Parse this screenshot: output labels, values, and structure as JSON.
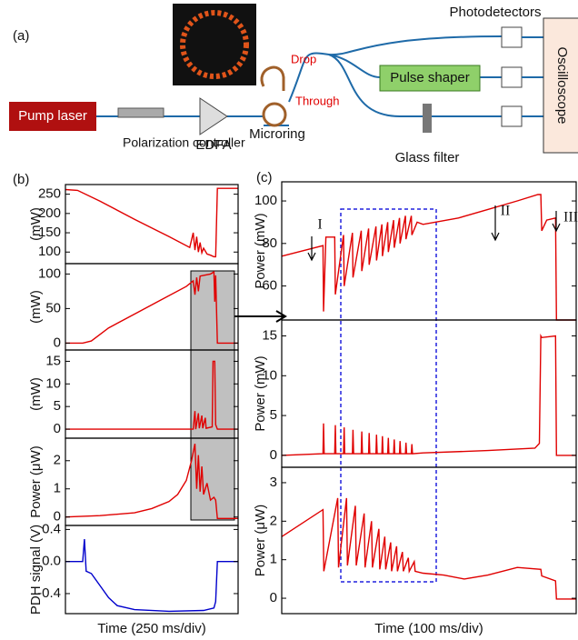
{
  "diagram": {
    "label": "(a)",
    "pump_laser": "Pump laser",
    "polarization_controller": "Polarization controller",
    "edfa": "EDFA",
    "microring": "Microring",
    "drop": "Drop",
    "through": "Through",
    "pulse_shaper": "Pulse shaper",
    "photodetectors": "Photodetectors",
    "oscilloscope": "Oscilloscope",
    "glass_filter": "Glass filter"
  },
  "chart_data": [
    {
      "type": "line",
      "panel_label": "(b)",
      "ylabel": "(mW)",
      "xlim": [
        0,
        100
      ],
      "ylim": [
        70,
        275
      ],
      "yticks": [
        100,
        150,
        200,
        250
      ],
      "x": [
        0,
        7,
        20,
        40,
        60,
        72,
        74,
        75,
        76,
        77,
        78,
        79,
        80,
        82,
        84,
        86,
        87,
        88,
        100
      ],
      "series": [
        {
          "color": "#e00000",
          "values": [
            262,
            260,
            232,
            185,
            140,
            112,
            150,
            105,
            140,
            100,
            125,
            98,
            110,
            95,
            92,
            88,
            88,
            265,
            265
          ]
        }
      ]
    },
    {
      "type": "line",
      "ylabel": "(mW)",
      "xlim": [
        0,
        100
      ],
      "ylim": [
        -10,
        115
      ],
      "yticks": [
        0,
        50,
        100
      ],
      "x": [
        0,
        10,
        15,
        25,
        40,
        55,
        70,
        74,
        75,
        76,
        77,
        78,
        80,
        84,
        86,
        86.5,
        87,
        88,
        100
      ],
      "series": [
        {
          "color": "#e00000",
          "values": [
            0,
            0,
            3,
            22,
            42,
            62,
            82,
            90,
            70,
            95,
            75,
            97,
            98,
            100,
            103,
            60,
            98,
            0,
            0
          ]
        }
      ]
    },
    {
      "type": "line",
      "ylabel": "(mW)",
      "xlim": [
        0,
        100
      ],
      "ylim": [
        -2,
        17.5
      ],
      "yticks": [
        0,
        5,
        10,
        15
      ],
      "x": [
        0,
        74,
        75,
        75.5,
        77,
        77.5,
        79,
        79.5,
        81,
        81.5,
        85,
        85.5,
        86.5,
        87,
        88,
        100
      ],
      "series": [
        {
          "color": "#e00000",
          "values": [
            0,
            0,
            4,
            0,
            3.5,
            0.2,
            3,
            0.2,
            2.5,
            0.2,
            0.5,
            15,
            15,
            1,
            0,
            0
          ]
        }
      ]
    },
    {
      "type": "line",
      "ylabel": "Power (μW)",
      "xlim": [
        0,
        100
      ],
      "ylim": [
        -0.3,
        2.8
      ],
      "yticks": [
        0,
        1,
        2
      ],
      "x": [
        0,
        20,
        40,
        50,
        60,
        65,
        70,
        73,
        75,
        76,
        77,
        78,
        79,
        80,
        82,
        84,
        86,
        87,
        88,
        100
      ],
      "series": [
        {
          "color": "#e00000",
          "values": [
            0,
            0.05,
            0.15,
            0.3,
            0.55,
            0.8,
            1.3,
            2,
            2.6,
            1,
            2.2,
            0.9,
            1.8,
            0.8,
            1.2,
            0.6,
            0.7,
            0.6,
            -0.05,
            -0.05
          ]
        }
      ]
    },
    {
      "type": "line",
      "ylabel": "PDH signal (V)",
      "xlabel": "Time (250 ms/div)",
      "xlim": [
        0,
        100
      ],
      "ylim": [
        -0.65,
        0.45
      ],
      "yticks": [
        0.4,
        {
          "value": 0,
          "label": "0.0"
        },
        -0.4
      ],
      "x": [
        0,
        10,
        11,
        12,
        15,
        20,
        25,
        30,
        40,
        60,
        80,
        86,
        87,
        88,
        100
      ],
      "series": [
        {
          "color": "#0000cc",
          "values": [
            0,
            0,
            0.28,
            -0.12,
            -0.15,
            -0.3,
            -0.45,
            -0.55,
            -0.6,
            -0.62,
            -0.61,
            -0.58,
            -0.5,
            0,
            0
          ]
        }
      ]
    },
    {
      "type": "line",
      "panel_label": "(c)",
      "ylabel": "Power (mW)",
      "annotations": [
        "I",
        "II",
        "III"
      ],
      "xlim": [
        0,
        100
      ],
      "ylim": [
        44,
        109
      ],
      "yticks": [
        60,
        80,
        100
      ],
      "x": [
        0,
        14,
        14.2,
        15,
        18,
        18.2,
        21,
        21.2,
        24,
        24.2,
        27,
        27.2,
        29.5,
        29.7,
        32,
        32.2,
        34,
        34.2,
        36,
        36.2,
        38,
        38.2,
        40,
        40.2,
        42,
        42.2,
        44,
        44.2,
        46,
        48,
        60,
        70,
        80,
        87,
        88,
        88.3,
        90,
        93,
        93.3,
        100
      ],
      "series": [
        {
          "color": "#e00000",
          "values": [
            74,
            79,
            48,
            83,
            83,
            56,
            84,
            60,
            85,
            64,
            86,
            67,
            87,
            70,
            88,
            72,
            89,
            74,
            90,
            76,
            91,
            78,
            92,
            80,
            93,
            82,
            93,
            84,
            90,
            89,
            92,
            96,
            100,
            103,
            103,
            86,
            91,
            92,
            44,
            44
          ]
        }
      ]
    },
    {
      "type": "line",
      "ylabel": "Power (mW)",
      "xlim": [
        0,
        100
      ],
      "ylim": [
        -1.5,
        17
      ],
      "yticks": [
        0,
        5,
        10,
        15
      ],
      "x": [
        0,
        14,
        14.2,
        14.4,
        18,
        18.2,
        18.4,
        21,
        21.2,
        21.4,
        24,
        24.2,
        24.4,
        27,
        27.2,
        27.4,
        29.5,
        29.7,
        29.9,
        32,
        32.2,
        32.4,
        34,
        34.2,
        34.4,
        36,
        36.2,
        36.4,
        38,
        38.2,
        38.4,
        40,
        40.2,
        40.4,
        42,
        42.2,
        42.4,
        44,
        44.2,
        44.4,
        48,
        70,
        86,
        87.5,
        88,
        88.3,
        93,
        93.3,
        100
      ],
      "series": [
        {
          "color": "#e00000",
          "values": [
            0,
            0.2,
            4,
            0.2,
            0.2,
            3.8,
            0.2,
            0.2,
            3.5,
            0.2,
            0.2,
            3.2,
            0.2,
            0.2,
            3,
            0.2,
            0.2,
            2.8,
            0.2,
            0.2,
            2.6,
            0.2,
            0.2,
            2.4,
            0.2,
            0.2,
            2.2,
            0.2,
            0.2,
            2,
            0.2,
            0.2,
            1.8,
            0.2,
            0.2,
            1.6,
            0.2,
            0.2,
            1.4,
            0.2,
            0.3,
            0.6,
            0.9,
            1.5,
            15,
            14.8,
            15,
            0,
            0
          ]
        }
      ]
    },
    {
      "type": "line",
      "ylabel": "Power (μW)",
      "xlabel": "Time (100 ms/div)",
      "xlim": [
        0,
        100
      ],
      "ylim": [
        -0.4,
        3.4
      ],
      "yticks": [
        0,
        1,
        2,
        3
      ],
      "x": [
        0,
        14,
        14.3,
        19,
        19.3,
        22,
        22.3,
        25,
        25.3,
        28,
        28.3,
        30.5,
        30.8,
        33,
        33.3,
        35,
        35.3,
        37,
        37.3,
        39,
        39.3,
        41,
        41.3,
        43,
        43.3,
        45,
        45.3,
        48,
        55,
        62,
        70,
        80,
        88,
        88.3,
        93,
        93.3,
        100
      ],
      "series": [
        {
          "color": "#e00000",
          "values": [
            1.6,
            2.3,
            0.7,
            2.6,
            0.8,
            2.6,
            0.85,
            2.4,
            0.85,
            2.2,
            0.8,
            2,
            0.8,
            1.8,
            0.75,
            1.6,
            0.75,
            1.45,
            0.7,
            1.35,
            0.7,
            1.2,
            0.7,
            1.05,
            0.7,
            0.95,
            0.7,
            0.65,
            0.6,
            0.5,
            0.6,
            0.8,
            0.75,
            0.58,
            0.45,
            -0.02,
            -0.02
          ]
        }
      ]
    }
  ]
}
